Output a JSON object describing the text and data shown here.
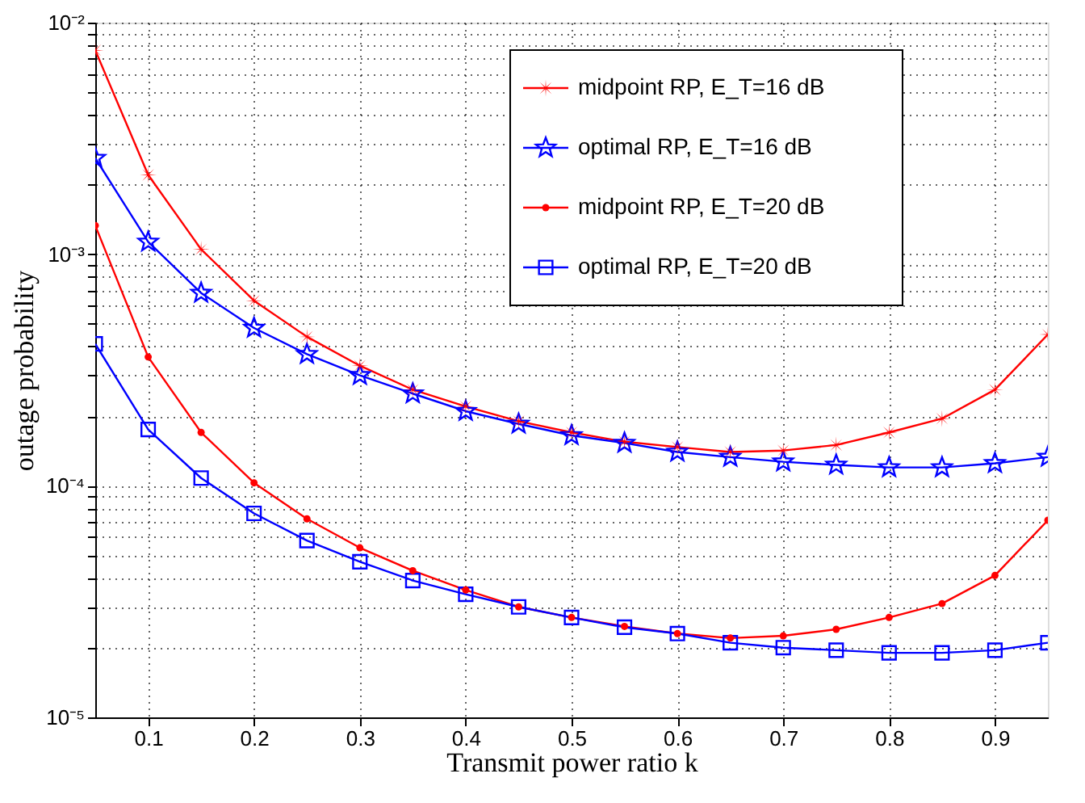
{
  "chart_data": {
    "type": "line",
    "xlabel": "Transmit power ratio k",
    "ylabel": "outage probability",
    "log": "y",
    "grid": true,
    "legend": "top right",
    "line_style": "solid",
    "xlim": [
      0.05,
      0.95
    ],
    "xticks": [
      0.1,
      0.2,
      0.3,
      0.4,
      0.5,
      0.6,
      0.7,
      0.8,
      0.9
    ],
    "ylim": [
      1e-05,
      0.01
    ],
    "yticks": [
      {
        "value": 1e-05,
        "label": "10⁻⁵"
      },
      {
        "value": 2e-05,
        "label": null
      },
      {
        "value": 3e-05,
        "label": null
      },
      {
        "value": 4e-05,
        "label": null
      },
      {
        "value": 5e-05,
        "label": null
      },
      {
        "value": 6e-05,
        "label": null
      },
      {
        "value": 7e-05,
        "label": null
      },
      {
        "value": 8e-05,
        "label": null
      },
      {
        "value": 9e-05,
        "label": null
      },
      {
        "value": 0.0001,
        "label": "10⁻⁴"
      },
      {
        "value": 0.0002,
        "label": null
      },
      {
        "value": 0.0003,
        "label": null
      },
      {
        "value": 0.0004,
        "label": null
      },
      {
        "value": 0.0005,
        "label": null
      },
      {
        "value": 0.0006,
        "label": null
      },
      {
        "value": 0.0007,
        "label": null
      },
      {
        "value": 0.0008,
        "label": null
      },
      {
        "value": 0.0009,
        "label": null
      },
      {
        "value": 0.001,
        "label": "10⁻³"
      },
      {
        "value": 0.002,
        "label": null
      },
      {
        "value": 0.003,
        "label": null
      },
      {
        "value": 0.004,
        "label": null
      },
      {
        "value": 0.005,
        "label": null
      },
      {
        "value": 0.006,
        "label": null
      },
      {
        "value": 0.007,
        "label": null
      },
      {
        "value": 0.008,
        "label": null
      },
      {
        "value": 0.009,
        "label": null
      },
      {
        "value": 0.01,
        "label": "10⁻²"
      }
    ],
    "x": [
      0.05,
      0.1,
      0.15,
      0.2,
      0.25,
      0.3,
      0.35,
      0.4,
      0.45,
      0.5,
      0.55,
      0.6,
      0.65,
      0.7,
      0.75,
      0.8,
      0.85,
      0.9,
      0.95
    ],
    "series": [
      {
        "name": "midpoint RP, E_T=16 dB",
        "color": "#ff0000",
        "marker": "cross",
        "values": [
          0.0076,
          0.0022,
          0.00105,
          0.00063,
          0.00044,
          0.00033,
          0.00026,
          0.00022,
          0.00019,
          0.00017,
          0.000155,
          0.000147,
          0.00014,
          0.000142,
          0.00015,
          0.00017,
          0.000195,
          0.00026,
          0.00045
        ]
      },
      {
        "name": "optimal RP, E_T=16 dB",
        "color": "#0000ff",
        "marker": "star",
        "values": [
          0.0026,
          0.00113,
          0.00068,
          0.00048,
          0.00037,
          0.0003,
          0.00025,
          0.00021,
          0.000185,
          0.000165,
          0.000153,
          0.00014,
          0.000133,
          0.000127,
          0.000123,
          0.00012,
          0.00012,
          0.000125,
          0.000133
        ]
      },
      {
        "name": "midpoint RP, E_T=20 dB",
        "color": "#ff0000",
        "marker": "circle",
        "values": [
          0.00133,
          0.00036,
          0.00017,
          0.000103,
          7.2e-05,
          5.4e-05,
          4.3e-05,
          3.55e-05,
          3e-05,
          2.7e-05,
          2.47e-05,
          2.3e-05,
          2.2e-05,
          2.25e-05,
          2.4e-05,
          2.7e-05,
          3.1e-05,
          4.1e-05,
          7.1e-05
        ]
      },
      {
        "name": "optimal RP, E_T=20 dB",
        "color": "#0000ff",
        "marker": "square",
        "values": [
          0.00041,
          0.000175,
          0.000108,
          7.6e-05,
          5.8e-05,
          4.7e-05,
          3.9e-05,
          3.4e-05,
          3e-05,
          2.7e-05,
          2.45e-05,
          2.3e-05,
          2.1e-05,
          2e-05,
          1.95e-05,
          1.9e-05,
          1.9e-05,
          1.95e-05,
          2.1e-05
        ]
      }
    ]
  }
}
